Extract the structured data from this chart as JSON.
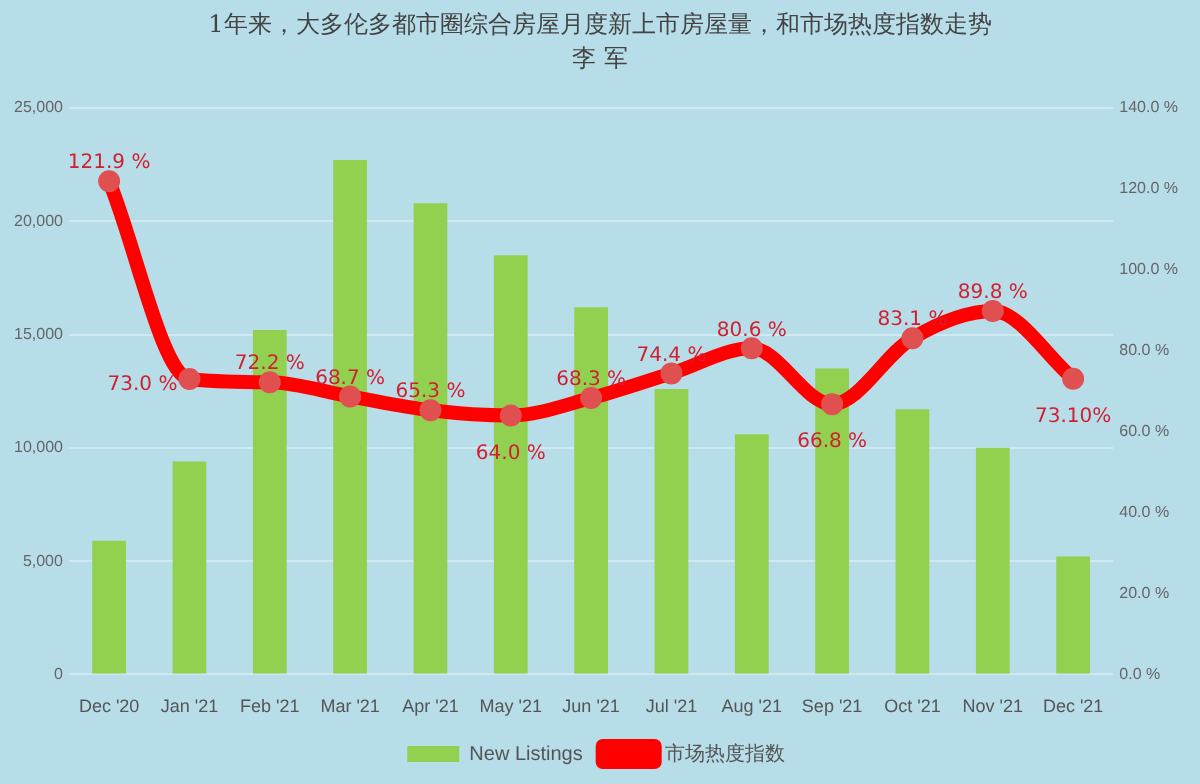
{
  "chart_data": {
    "type": "bar",
    "title": "1年来，大多伦多都市圈综合房屋月度新上市房屋量，和市场热度指数走势",
    "subtitle": "李 军",
    "categories": [
      "Dec '20",
      "Jan '21",
      "Feb '21",
      "Mar '21",
      "Apr '21",
      "May '21",
      "Jun '21",
      "Jul '21",
      "Aug '21",
      "Sep '21",
      "Oct '21",
      "Nov '21",
      "Dec '21"
    ],
    "series": [
      {
        "name": "New Listings",
        "type": "bar",
        "color": "#92d050",
        "values": [
          5900,
          9400,
          15200,
          22700,
          20800,
          18500,
          16200,
          12600,
          10600,
          13500,
          11700,
          10000,
          5200
        ]
      },
      {
        "name": "市场热度指数",
        "type": "line",
        "axis": "y2",
        "color": "#ff0000",
        "marker": "circle",
        "line_style": "solid",
        "values": [
          121.9,
          73.0,
          72.2,
          68.7,
          65.3,
          64.0,
          68.3,
          74.4,
          80.6,
          66.8,
          83.1,
          89.8,
          73.1
        ],
        "value_labels": [
          "121.9 %",
          "73.0 %",
          "72.2 %",
          "68.7 %",
          "65.3 %",
          "64.0 %",
          "68.3 %",
          "74.4 %",
          "80.6 %",
          "66.8 %",
          "83.1 %",
          "89.8 %",
          "73.10%"
        ]
      }
    ],
    "ylim": [
      0,
      25000
    ],
    "yticks": [
      {
        "value": 0,
        "label": "0"
      },
      {
        "value": 5000,
        "label": "5,000"
      },
      {
        "value": 10000,
        "label": "10,000"
      },
      {
        "value": 15000,
        "label": "15,000"
      },
      {
        "value": 20000,
        "label": "20,000"
      },
      {
        "value": 25000,
        "label": "25,000"
      }
    ],
    "y2lim": [
      0,
      140
    ],
    "y2ticks": [
      {
        "value": 0,
        "label": "0.0 %"
      },
      {
        "value": 20,
        "label": "20.0 %"
      },
      {
        "value": 40,
        "label": "40.0 %"
      },
      {
        "value": 60,
        "label": "60.0 %"
      },
      {
        "value": 80,
        "label": "80.0 %"
      },
      {
        "value": 100,
        "label": "100.0 %"
      },
      {
        "value": 120,
        "label": "120.0 %"
      },
      {
        "value": 140,
        "label": "140.0 %"
      }
    ],
    "grid": "y",
    "legend": "bottom"
  }
}
